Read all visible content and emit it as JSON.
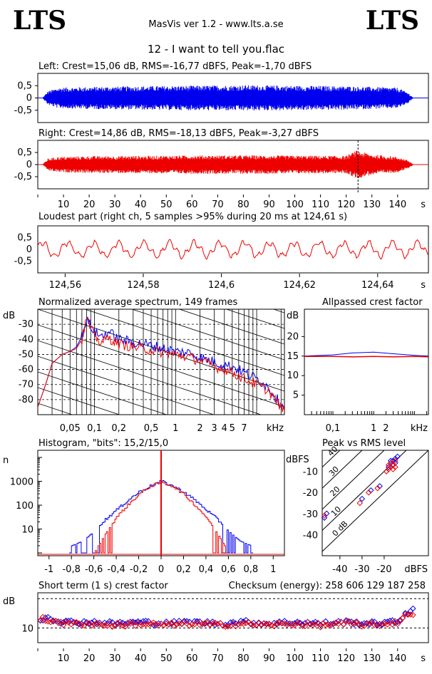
{
  "header": {
    "logo_left": "LTS",
    "logo_right": "LTS",
    "app_title": "MasVis ver 1.2 - www.lts.a.se",
    "track_title": "12 - I want to tell you.flac"
  },
  "colors": {
    "left": "#0000ee",
    "right": "#ee0000",
    "axes": "#000000",
    "grid": "#000000"
  },
  "chart_data": [
    {
      "id": "left",
      "type": "area",
      "title": "Left: Crest=15,06 dB, RMS=-16,77 dBFS, Peak=-1,70 dBFS",
      "y_ticks": [
        "0,5",
        "0",
        "-0,5"
      ],
      "ylim": [
        -1,
        1
      ],
      "xlim": [
        0,
        152
      ],
      "series": [
        {
          "name": "Left",
          "start_s": 2,
          "end_s": 146,
          "envelope": [
            [
              2,
              0.02
            ],
            [
              4,
              0.28
            ],
            [
              8,
              0.42
            ],
            [
              20,
              0.45
            ],
            [
              40,
              0.48
            ],
            [
              60,
              0.5
            ],
            [
              80,
              0.52
            ],
            [
              100,
              0.5
            ],
            [
              120,
              0.48
            ],
            [
              140,
              0.42
            ],
            [
              144,
              0.22
            ],
            [
              146,
              0.02
            ]
          ]
        }
      ]
    },
    {
      "id": "right",
      "type": "area",
      "title": "Right: Crest=14,86 dB, RMS=-18,13 dBFS, Peak=-3,27 dBFS",
      "y_ticks": [
        "0,5",
        "0",
        "-0,5"
      ],
      "ylim": [
        -1,
        1
      ],
      "xlim": [
        0,
        152
      ],
      "x_ticks": [
        "10",
        "20",
        "30",
        "40",
        "50",
        "60",
        "70",
        "80",
        "90",
        "100",
        "110",
        "120",
        "130",
        "140"
      ],
      "x_unit": "s",
      "marker_s": 124.61,
      "series": [
        {
          "name": "Right",
          "start_s": 2,
          "end_s": 146,
          "envelope": [
            [
              2,
              0.02
            ],
            [
              4,
              0.25
            ],
            [
              8,
              0.32
            ],
            [
              20,
              0.35
            ],
            [
              40,
              0.36
            ],
            [
              60,
              0.38
            ],
            [
              80,
              0.38
            ],
            [
              100,
              0.37
            ],
            [
              120,
              0.36
            ],
            [
              124,
              0.58
            ],
            [
              130,
              0.42
            ],
            [
              140,
              0.32
            ],
            [
              144,
              0.18
            ],
            [
              146,
              0.02
            ]
          ]
        }
      ]
    },
    {
      "id": "loudest",
      "type": "line",
      "title": "Loudest part (right ch, 5 samples >95% during 20 ms at 124,61 s)",
      "y_ticks": [
        "0,5",
        "0",
        "-0,5"
      ],
      "ylim": [
        -1,
        1
      ],
      "x_ticks": [
        "124,56",
        "124,58",
        "124,6",
        "124,62",
        "124,64"
      ],
      "x_unit": "s",
      "xlim": [
        124.553,
        124.653
      ]
    },
    {
      "id": "spectrum",
      "type": "line",
      "title": "Normalized average spectrum, 149 frames",
      "ylabel": "dB",
      "y_ticks": [
        "-30",
        "-40",
        "-50",
        "-60",
        "-70",
        "-80"
      ],
      "ylim": [
        -90,
        -20
      ],
      "x_ticks": [
        "0,05",
        "0,1",
        "0,2",
        "0,5",
        "1",
        "2",
        "3",
        "4",
        "5",
        "7"
      ],
      "x_unit": "kHz",
      "xlim_khz": [
        0.02,
        22
      ],
      "series": [
        {
          "name": "Left",
          "points": [
            [
              0.02,
              -85
            ],
            [
              0.025,
              -70
            ],
            [
              0.03,
              -56
            ],
            [
              0.04,
              -50
            ],
            [
              0.05,
              -48
            ],
            [
              0.06,
              -45
            ],
            [
              0.07,
              -38
            ],
            [
              0.08,
              -27
            ],
            [
              0.09,
              -31
            ],
            [
              0.1,
              -35
            ],
            [
              0.12,
              -38
            ],
            [
              0.15,
              -35
            ],
            [
              0.2,
              -40
            ],
            [
              0.3,
              -42
            ],
            [
              0.5,
              -44
            ],
            [
              0.7,
              -46
            ],
            [
              1,
              -48
            ],
            [
              1.5,
              -49
            ],
            [
              2,
              -52
            ],
            [
              3,
              -55
            ],
            [
              4,
              -57
            ],
            [
              5,
              -58
            ],
            [
              7,
              -62
            ],
            [
              10,
              -66
            ],
            [
              14,
              -72
            ],
            [
              18,
              -80
            ],
            [
              22,
              -86
            ]
          ]
        },
        {
          "name": "Right",
          "points": [
            [
              0.02,
              -85
            ],
            [
              0.025,
              -70
            ],
            [
              0.03,
              -56
            ],
            [
              0.04,
              -50
            ],
            [
              0.05,
              -48
            ],
            [
              0.06,
              -46
            ],
            [
              0.07,
              -40
            ],
            [
              0.08,
              -26
            ],
            [
              0.09,
              -33
            ],
            [
              0.1,
              -38
            ],
            [
              0.12,
              -42
            ],
            [
              0.15,
              -39
            ],
            [
              0.2,
              -43
            ],
            [
              0.3,
              -45
            ],
            [
              0.5,
              -47
            ],
            [
              0.7,
              -49
            ],
            [
              1,
              -50
            ],
            [
              1.5,
              -52
            ],
            [
              2,
              -54
            ],
            [
              3,
              -58
            ],
            [
              4,
              -60
            ],
            [
              5,
              -62
            ],
            [
              7,
              -66
            ],
            [
              10,
              -70
            ],
            [
              14,
              -74
            ],
            [
              18,
              -82
            ],
            [
              22,
              -88
            ]
          ]
        }
      ]
    },
    {
      "id": "allpass",
      "type": "line",
      "title": "Allpassed crest factor",
      "ylabel": "dB",
      "y_ticks": [
        "20",
        "15",
        "10",
        "5"
      ],
      "ylim": [
        0,
        27
      ],
      "x_ticks": [
        "0,1",
        "1",
        "2"
      ],
      "x_unit": "kHz",
      "xlim_khz": [
        0.02,
        22
      ],
      "series": [
        {
          "name": "Left",
          "points": [
            [
              0.02,
              15.0
            ],
            [
              0.1,
              15.3
            ],
            [
              0.3,
              15.8
            ],
            [
              1,
              16.0
            ],
            [
              3,
              15.6
            ],
            [
              10,
              15.2
            ],
            [
              22,
              15.0
            ]
          ]
        },
        {
          "name": "Right",
          "points": [
            [
              0.02,
              14.9
            ],
            [
              0.1,
              14.9
            ],
            [
              0.3,
              14.8
            ],
            [
              1,
              14.9
            ],
            [
              3,
              14.8
            ],
            [
              10,
              14.9
            ],
            [
              22,
              14.8
            ]
          ]
        }
      ]
    },
    {
      "id": "histogram",
      "type": "line",
      "title": "Histogram, \"bits\": 15,2/15,0",
      "ylabel": "n",
      "y_ticks": [
        "1000",
        "100",
        "10"
      ],
      "ylim_log10": [
        0,
        4.3
      ],
      "x_ticks": [
        "-1",
        "-0,8",
        "-0,6",
        "-0,4",
        "-0,2",
        "0",
        "0,2",
        "0,4",
        "0,6",
        "0,8",
        "1"
      ],
      "xlim": [
        -1.1,
        1.1
      ],
      "series": [
        {
          "name": "Left",
          "points": [
            [
              -0.82,
              0
            ],
            [
              -0.8,
              0.3
            ],
            [
              -0.7,
              0.5
            ],
            [
              -0.6,
              0.9
            ],
            [
              -0.5,
              1.4
            ],
            [
              -0.4,
              1.8
            ],
            [
              -0.3,
              2.2
            ],
            [
              -0.2,
              2.55
            ],
            [
              -0.1,
              2.8
            ],
            [
              0,
              3.0
            ],
            [
              0.1,
              2.8
            ],
            [
              0.2,
              2.55
            ],
            [
              0.3,
              2.2
            ],
            [
              0.4,
              1.8
            ],
            [
              0.5,
              1.4
            ],
            [
              0.6,
              0.9
            ],
            [
              0.7,
              0.5
            ],
            [
              0.8,
              0.3
            ],
            [
              0.82,
              0
            ]
          ]
        },
        {
          "name": "Right",
          "points": [
            [
              -0.6,
              0
            ],
            [
              -0.55,
              0.4
            ],
            [
              -0.5,
              0.8
            ],
            [
              -0.4,
              1.5
            ],
            [
              -0.3,
              2.0
            ],
            [
              -0.2,
              2.45
            ],
            [
              -0.1,
              2.8
            ],
            [
              0,
              2.95
            ],
            [
              0.1,
              2.8
            ],
            [
              0.2,
              2.45
            ],
            [
              0.3,
              2.0
            ],
            [
              0.4,
              1.5
            ],
            [
              0.5,
              0.8
            ],
            [
              0.55,
              0.4
            ],
            [
              0.6,
              0
            ]
          ]
        }
      ]
    },
    {
      "id": "peak_rms",
      "type": "scatter",
      "title": "Peak vs RMS level",
      "ylabel": "dBFS",
      "xlabel": "dBFS",
      "y_ticks": [
        "-10",
        "-20",
        "-30",
        "-40"
      ],
      "x_ticks": [
        "-40",
        "-30",
        "-20"
      ],
      "xlim": [
        -48,
        0
      ],
      "ylim": [
        -50,
        0
      ],
      "diagonal_labels": [
        "40",
        "30",
        "20",
        "10",
        "0 dB"
      ],
      "series": [
        {
          "name": "Left",
          "points": [
            [
              -47,
              -32
            ],
            [
              -46,
              -30
            ],
            [
              -30,
              -23
            ],
            [
              -26,
              -19
            ],
            [
              -22,
              -17
            ],
            [
              -18,
              -8
            ],
            [
              -17,
              -6
            ],
            [
              -16,
              -5
            ],
            [
              -15,
              -4
            ],
            [
              -14,
              -3
            ],
            [
              -16,
              -7
            ],
            [
              -15,
              -6
            ],
            [
              -17,
              -5
            ]
          ]
        },
        {
          "name": "Right",
          "points": [
            [
              -47,
              -31
            ],
            [
              -31,
              -25
            ],
            [
              -27,
              -20
            ],
            [
              -23,
              -18
            ],
            [
              -19,
              -10
            ],
            [
              -18,
              -9
            ],
            [
              -17,
              -8
            ],
            [
              -16,
              -7
            ],
            [
              -15,
              -5
            ],
            [
              -18,
              -7
            ],
            [
              -17,
              -6
            ],
            [
              -16,
              -9
            ],
            [
              -15,
              -8
            ]
          ]
        }
      ]
    },
    {
      "id": "crest",
      "type": "scatter",
      "title": "Short term (1 s) crest factor",
      "checksum": "Checksum (energy):   258 606 129 187 258",
      "ylabel": "dB",
      "y_ticks": [
        "10"
      ],
      "ylim": [
        5,
        22
      ],
      "x_ticks": [
        "10",
        "20",
        "30",
        "40",
        "50",
        "60",
        "70",
        "80",
        "90",
        "100",
        "110",
        "120",
        "130",
        "140"
      ],
      "x_unit": "s",
      "xlim": [
        0,
        152
      ],
      "series": [
        {
          "name": "Left",
          "points": [
            [
              2,
              13
            ],
            [
              4,
              14
            ],
            [
              6,
              13
            ],
            [
              10,
              12
            ],
            [
              20,
              12
            ],
            [
              30,
              11.5
            ],
            [
              40,
              12
            ],
            [
              50,
              11.5
            ],
            [
              60,
              12
            ],
            [
              70,
              11.5
            ],
            [
              80,
              12
            ],
            [
              90,
              11.5
            ],
            [
              100,
              12
            ],
            [
              110,
              11.5
            ],
            [
              120,
              12
            ],
            [
              130,
              11.5
            ],
            [
              140,
              12
            ],
            [
              143,
              15
            ],
            [
              145,
              16
            ]
          ]
        },
        {
          "name": "Right",
          "points": [
            [
              2,
              13
            ],
            [
              4,
              12
            ],
            [
              6,
              13
            ],
            [
              10,
              11.5
            ],
            [
              20,
              11.5
            ],
            [
              30,
              11
            ],
            [
              40,
              11.5
            ],
            [
              50,
              11
            ],
            [
              60,
              11.5
            ],
            [
              70,
              11
            ],
            [
              80,
              11.5
            ],
            [
              90,
              11
            ],
            [
              100,
              11.5
            ],
            [
              110,
              11
            ],
            [
              120,
              11.5
            ],
            [
              130,
              11
            ],
            [
              140,
              12
            ],
            [
              143,
              14
            ],
            [
              145,
              15
            ]
          ]
        }
      ]
    }
  ]
}
